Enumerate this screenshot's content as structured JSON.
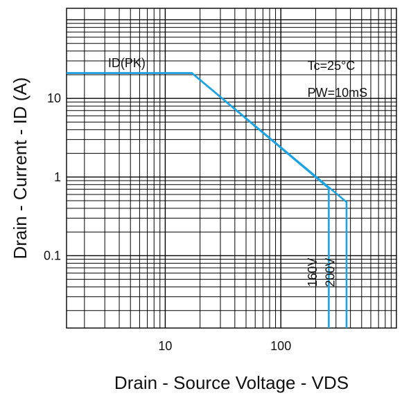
{
  "chart_data": {
    "type": "line",
    "title": "",
    "xlabel": "Drain - Source Voltage - VDS",
    "ylabel": "Drain - Current - ID (A)",
    "x_scale": "log",
    "y_scale": "log",
    "xlim": [
      1.4,
      1000
    ],
    "ylim": [
      0.012,
      140
    ],
    "grid": true,
    "x_ticks": [
      {
        "value": 10,
        "label": "10"
      },
      {
        "value": 100,
        "label": "100"
      }
    ],
    "y_ticks": [
      {
        "value": 10,
        "label": "10"
      },
      {
        "value": 1,
        "label": "1"
      },
      {
        "value": 0.1,
        "label": "0.1"
      }
    ],
    "series": [
      {
        "name": "160V",
        "color": "#1fa3e0",
        "points": [
          [
            1.4,
            21
          ],
          [
            17,
            21
          ],
          [
            260,
            0.72
          ],
          [
            260,
            0.012
          ]
        ]
      },
      {
        "name": "200V",
        "color": "#1fa3e0",
        "points": [
          [
            1.4,
            21
          ],
          [
            17,
            21
          ],
          [
            370,
            0.48
          ],
          [
            370,
            0.012
          ]
        ]
      }
    ],
    "annotations": [
      {
        "text": "ID(PK)",
        "x": 3.2,
        "y": 25
      },
      {
        "text": "Tc=25°C",
        "x": 170,
        "y": 23
      },
      {
        "text": "PW=10mS",
        "x": 170,
        "y": 10.5
      },
      {
        "text": "160V",
        "x": 205,
        "y": 0.04,
        "rotate": true
      },
      {
        "text": "200V",
        "x": 290,
        "y": 0.04,
        "rotate": true
      }
    ]
  }
}
